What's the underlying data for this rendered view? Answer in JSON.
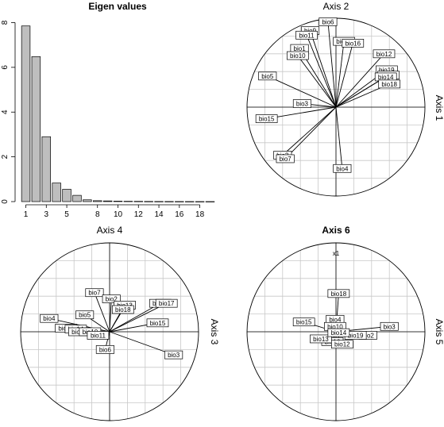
{
  "chart_data": [
    {
      "type": "bar",
      "title": "Eigen values",
      "categories": [
        1,
        2,
        3,
        4,
        5,
        6,
        7,
        8,
        9,
        10,
        11,
        12,
        13,
        14,
        15,
        16,
        17,
        18,
        19
      ],
      "values": [
        7.85,
        6.48,
        2.9,
        0.83,
        0.55,
        0.28,
        0.08,
        0.04,
        0.03,
        0.02,
        0.015,
        0.012,
        0.008,
        0.006,
        0.005,
        0.004,
        0.003,
        0.002,
        0.002
      ],
      "x_tick_labels": [
        "1",
        "3",
        "5",
        "8",
        "10",
        "12",
        "14",
        "16",
        "18"
      ],
      "x_tick_positions": [
        1,
        3,
        5,
        8,
        10,
        12,
        14,
        16,
        18
      ],
      "y_ticks": [
        0,
        2,
        4,
        6,
        8
      ],
      "ylim": [
        0,
        8.3
      ]
    },
    {
      "type": "scatter",
      "subtype": "correlation-circle",
      "title": "Axis 2",
      "xlabel": "",
      "ylabel": "Axis 1",
      "xlim": [
        -1,
        1
      ],
      "ylim": [
        -1,
        1
      ],
      "points": [
        {
          "label": "bio6",
          "x": -0.09,
          "y": 0.96
        },
        {
          "label": "bio9",
          "x": -0.29,
          "y": 0.86
        },
        {
          "label": "bio11",
          "x": -0.33,
          "y": 0.81
        },
        {
          "label": "bio1",
          "x": -0.41,
          "y": 0.66
        },
        {
          "label": "bio10",
          "x": -0.43,
          "y": 0.58
        },
        {
          "label": "bio13",
          "x": 0.09,
          "y": 0.74
        },
        {
          "label": "bio16",
          "x": 0.19,
          "y": 0.72
        },
        {
          "label": "bio12",
          "x": 0.54,
          "y": 0.6
        },
        {
          "label": "bio19",
          "x": 0.57,
          "y": 0.42
        },
        {
          "label": "bio17",
          "x": 0.59,
          "y": 0.36
        },
        {
          "label": "bio14",
          "x": 0.56,
          "y": 0.34
        },
        {
          "label": "bio18",
          "x": 0.6,
          "y": 0.26
        },
        {
          "label": "bio5",
          "x": -0.77,
          "y": 0.35
        },
        {
          "label": "bio3",
          "x": -0.38,
          "y": 0.04
        },
        {
          "label": "bio15",
          "x": -0.78,
          "y": -0.13
        },
        {
          "label": "bio2",
          "x": -0.6,
          "y": -0.54
        },
        {
          "label": "bio7",
          "x": -0.57,
          "y": -0.58
        },
        {
          "label": "bio4",
          "x": 0.07,
          "y": -0.69
        }
      ]
    },
    {
      "type": "scatter",
      "subtype": "correlation-circle",
      "title": "Axis 4",
      "xlabel": "",
      "ylabel": "Axis 3",
      "xlim": [
        -1,
        1
      ],
      "ylim": [
        -1,
        1
      ],
      "points": [
        {
          "label": "bio7",
          "x": -0.17,
          "y": 0.44
        },
        {
          "label": "bio2",
          "x": 0.02,
          "y": 0.37
        },
        {
          "label": "bio13",
          "x": 0.17,
          "y": 0.3
        },
        {
          "label": "bio18",
          "x": 0.15,
          "y": 0.25
        },
        {
          "label": "bio16",
          "x": 0.57,
          "y": 0.32
        },
        {
          "label": "bio17",
          "x": 0.64,
          "y": 0.32
        },
        {
          "label": "bio15",
          "x": 0.54,
          "y": 0.1
        },
        {
          "label": "bio5",
          "x": -0.28,
          "y": 0.19
        },
        {
          "label": "bio4",
          "x": -0.68,
          "y": 0.15
        },
        {
          "label": "bio19",
          "x": -0.49,
          "y": 0.04
        },
        {
          "label": "bio14",
          "x": -0.38,
          "y": 0.03
        },
        {
          "label": "bio12",
          "x": -0.34,
          "y": 0.0
        },
        {
          "label": "bio10",
          "x": -0.22,
          "y": 0.0
        },
        {
          "label": "bio11",
          "x": -0.13,
          "y": -0.04
        },
        {
          "label": "bio6",
          "x": -0.05,
          "y": -0.2
        },
        {
          "label": "bio3",
          "x": 0.72,
          "y": -0.26
        }
      ]
    },
    {
      "type": "scatter",
      "subtype": "correlation-circle",
      "title": "Axis 6",
      "xlabel": "",
      "ylabel": "Axis 5",
      "xlim": [
        -1,
        1
      ],
      "ylim": [
        -1,
        1
      ],
      "annotation": "x1",
      "points": [
        {
          "label": "bio18",
          "x": 0.03,
          "y": 0.43
        },
        {
          "label": "bio15",
          "x": -0.36,
          "y": 0.11
        },
        {
          "label": "bio4",
          "x": -0.01,
          "y": 0.14
        },
        {
          "label": "bio10",
          "x": -0.01,
          "y": 0.06
        },
        {
          "label": "bio3",
          "x": 0.6,
          "y": 0.06
        },
        {
          "label": "bio2",
          "x": 0.36,
          "y": -0.04
        },
        {
          "label": "bio19",
          "x": 0.22,
          "y": -0.04
        },
        {
          "label": "bio16",
          "x": -0.04,
          "y": -0.11
        },
        {
          "label": "bio13",
          "x": -0.17,
          "y": -0.08
        },
        {
          "label": "bio12",
          "x": 0.07,
          "y": -0.14
        },
        {
          "label": "bio14",
          "x": 0.03,
          "y": -0.01
        }
      ]
    }
  ]
}
